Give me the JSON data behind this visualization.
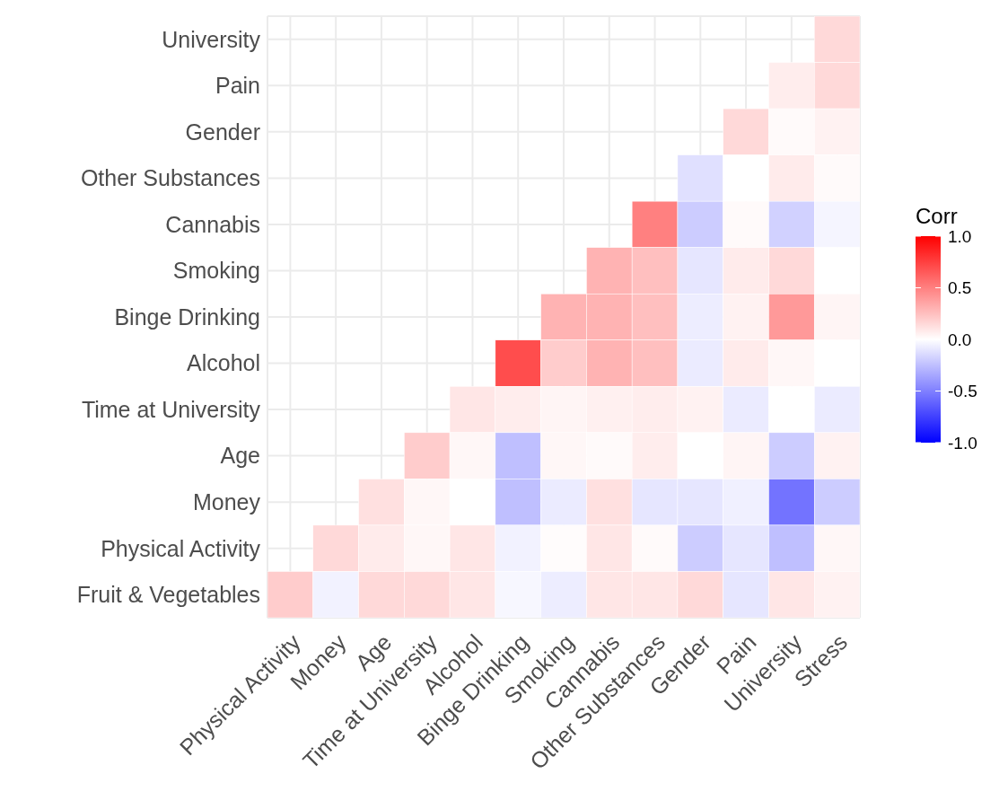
{
  "chart_data": {
    "type": "heatmap",
    "clabel": "Corr",
    "grid": true,
    "categories": [
      "Physical Activity",
      "Money",
      "Age",
      "Time at University",
      "Alcohol",
      "Binge Drinking",
      "Smoking",
      "Cannabis",
      "Other Substances",
      "Gender",
      "Pain",
      "University",
      "Stress"
    ],
    "y_categories": [
      "University",
      "Pain",
      "Gender",
      "Other Substances",
      "Cannabis",
      "Smoking",
      "Binge Drinking",
      "Alcohol",
      "Time at University",
      "Age",
      "Money",
      "Physical Activity",
      "Fruit & Vegetables"
    ],
    "cells": [
      [
        null,
        null,
        null,
        null,
        null,
        null,
        null,
        null,
        null,
        null,
        null,
        null,
        0.15
      ],
      [
        null,
        null,
        null,
        null,
        null,
        null,
        null,
        null,
        null,
        null,
        null,
        0.07,
        0.15
      ],
      [
        null,
        null,
        null,
        null,
        null,
        null,
        null,
        null,
        null,
        null,
        0.15,
        0.02,
        0.05
      ],
      [
        null,
        null,
        null,
        null,
        null,
        null,
        null,
        null,
        null,
        -0.12,
        0.0,
        0.08,
        0.02
      ],
      [
        null,
        null,
        null,
        null,
        null,
        null,
        null,
        null,
        0.5,
        -0.2,
        0.02,
        -0.18,
        -0.04
      ],
      [
        null,
        null,
        null,
        null,
        null,
        null,
        null,
        0.3,
        0.25,
        -0.1,
        0.08,
        0.15,
        0.0
      ],
      [
        null,
        null,
        null,
        null,
        null,
        null,
        0.3,
        0.3,
        0.25,
        -0.07,
        0.05,
        0.4,
        0.04
      ],
      [
        null,
        null,
        null,
        null,
        null,
        0.7,
        0.2,
        0.3,
        0.25,
        -0.08,
        0.08,
        0.03,
        0.0
      ],
      [
        null,
        null,
        null,
        null,
        0.1,
        0.07,
        0.04,
        0.06,
        0.07,
        0.05,
        -0.08,
        0.0,
        -0.08
      ],
      [
        null,
        null,
        null,
        0.2,
        0.03,
        -0.25,
        0.03,
        0.02,
        0.07,
        0.0,
        0.04,
        -0.2,
        0.05
      ],
      [
        null,
        null,
        0.12,
        0.03,
        0.0,
        -0.25,
        -0.08,
        0.12,
        -0.1,
        -0.1,
        -0.06,
        -0.55,
        -0.2
      ],
      [
        null,
        0.15,
        0.08,
        0.03,
        0.1,
        -0.05,
        0.01,
        0.1,
        0.02,
        -0.2,
        -0.1,
        -0.25,
        0.03
      ],
      [
        0.2,
        -0.05,
        0.15,
        0.15,
        0.1,
        -0.03,
        -0.07,
        0.1,
        0.1,
        0.15,
        -0.1,
        0.1,
        0.05
      ]
    ],
    "clim": [
      -1,
      1
    ],
    "cticks": [
      {
        "value": 1,
        "label": "1.0"
      },
      {
        "value": 0.5,
        "label": "0.5"
      },
      {
        "value": 0,
        "label": "0.0"
      },
      {
        "value": -0.5,
        "label": "-0.5"
      },
      {
        "value": -1,
        "label": "-1.0"
      }
    ]
  }
}
